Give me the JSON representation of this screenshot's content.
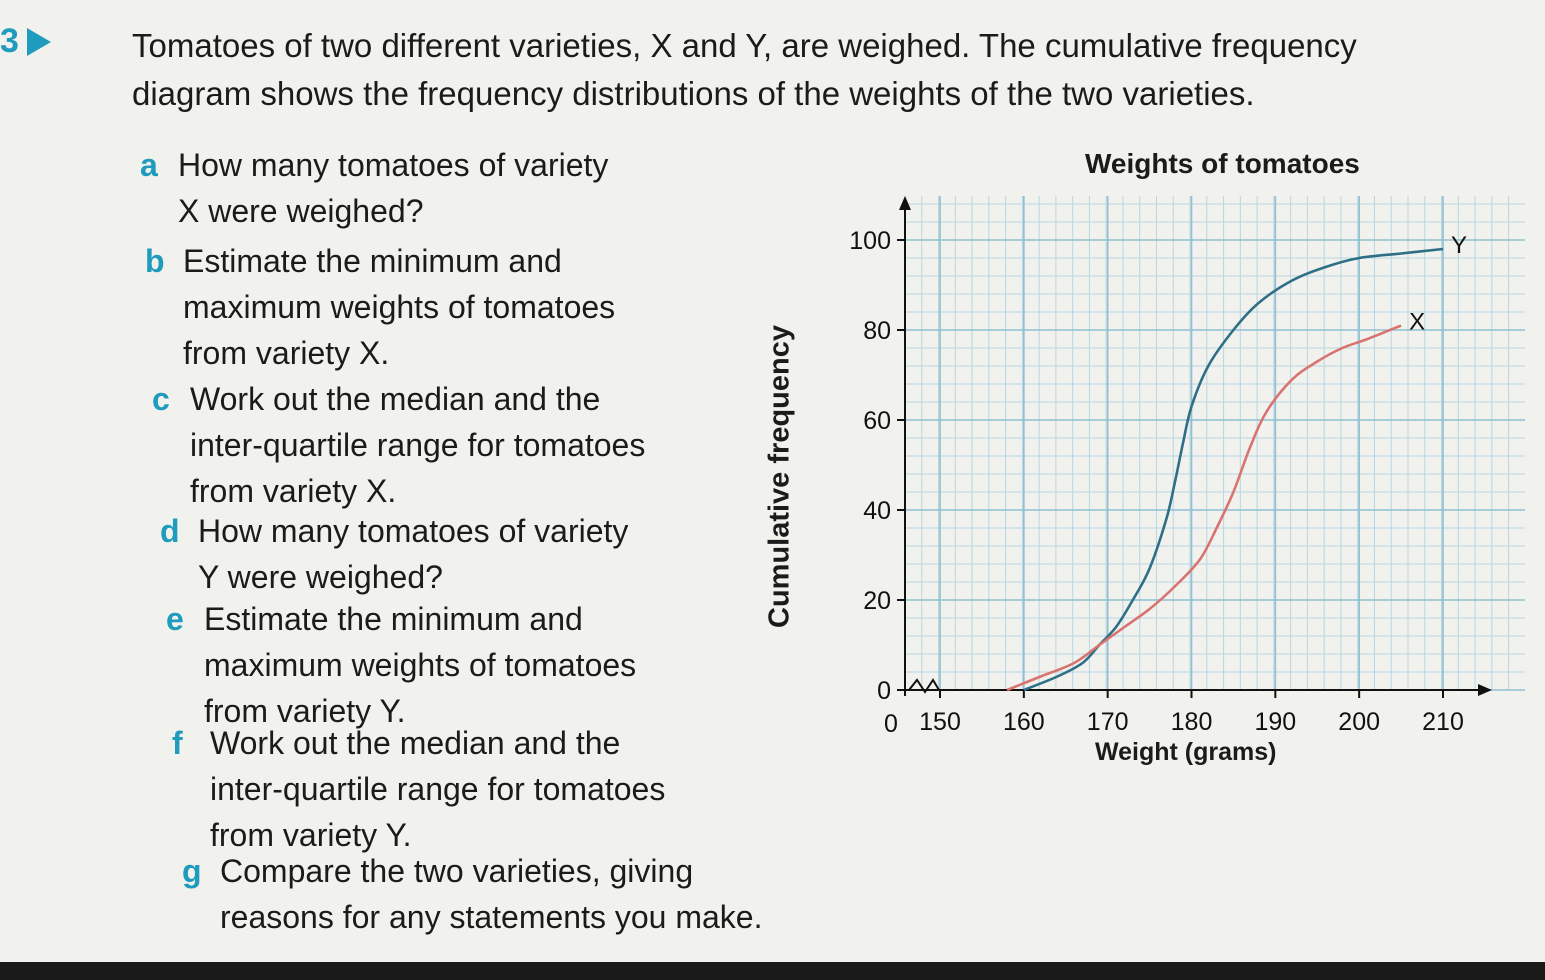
{
  "question": {
    "number": "3",
    "intro_line1": "Tomatoes of two different varieties, X and Y, are weighed. The cumulative frequency",
    "intro_line2": "diagram shows the frequency distributions of the weights of the two varieties.",
    "parts": [
      {
        "letter": "a",
        "line1": "How many tomatoes of variety",
        "line2": "X were weighed?"
      },
      {
        "letter": "b",
        "line1": "Estimate the minimum and",
        "line2": "maximum weights of tomatoes",
        "line3": "from variety X."
      },
      {
        "letter": "c",
        "line1": "Work out the median and the",
        "line2": "inter-quartile range for tomatoes",
        "line3": "from variety X."
      },
      {
        "letter": "d",
        "line1": "How many tomatoes of variety",
        "line2": "Y were weighed?"
      },
      {
        "letter": "e",
        "line1": "Estimate the minimum and",
        "line2": "maximum weights of tomatoes",
        "line3": "from variety Y."
      },
      {
        "letter": "f",
        "line1": "Work out the median and the",
        "line2": "inter-quartile range for tomatoes",
        "line3": "from variety Y."
      },
      {
        "letter": "g",
        "line1": "Compare the two varieties, giving",
        "line2": "reasons for any statements you make."
      }
    ]
  },
  "colors": {
    "accent": "#1f9bbd",
    "grid": "#b9d6e2",
    "series_Y": "#2f6f86",
    "series_X": "#d9736f"
  },
  "chart_data": {
    "type": "line",
    "title": "Weights of tomatoes",
    "xlabel": "Weight (grams)",
    "ylabel": "Cumulative frequency",
    "xlim": [
      145,
      210
    ],
    "ylim": [
      0,
      100
    ],
    "x_ticks": [
      "150",
      "160",
      "170",
      "180",
      "190",
      "200",
      "210"
    ],
    "x_tick_values": [
      150,
      160,
      170,
      180,
      190,
      200,
      210
    ],
    "x_origin_label": "0",
    "y_ticks": [
      "0",
      "20",
      "40",
      "60",
      "80",
      "100"
    ],
    "y_tick_values": [
      0,
      20,
      40,
      60,
      80,
      100
    ],
    "axis_break": true,
    "grid": true,
    "series": [
      {
        "name": "Y",
        "x": [
          160,
          164,
          167,
          169,
          171,
          173,
          175,
          177,
          178,
          179,
          180,
          182,
          185,
          188,
          192,
          196,
          200,
          205,
          210
        ],
        "y": [
          0,
          3,
          6,
          10,
          14,
          20,
          27,
          38,
          46,
          55,
          63,
          72,
          80,
          86,
          91,
          94,
          96,
          97,
          98
        ]
      },
      {
        "name": "X",
        "x": [
          158,
          162,
          166,
          169,
          172,
          175,
          178,
          181,
          183,
          185,
          187,
          189,
          192,
          195,
          198,
          201,
          205
        ],
        "y": [
          0,
          3,
          6,
          10,
          14,
          18,
          23,
          29,
          36,
          44,
          54,
          62,
          69,
          73,
          76,
          78,
          81
        ]
      }
    ]
  }
}
